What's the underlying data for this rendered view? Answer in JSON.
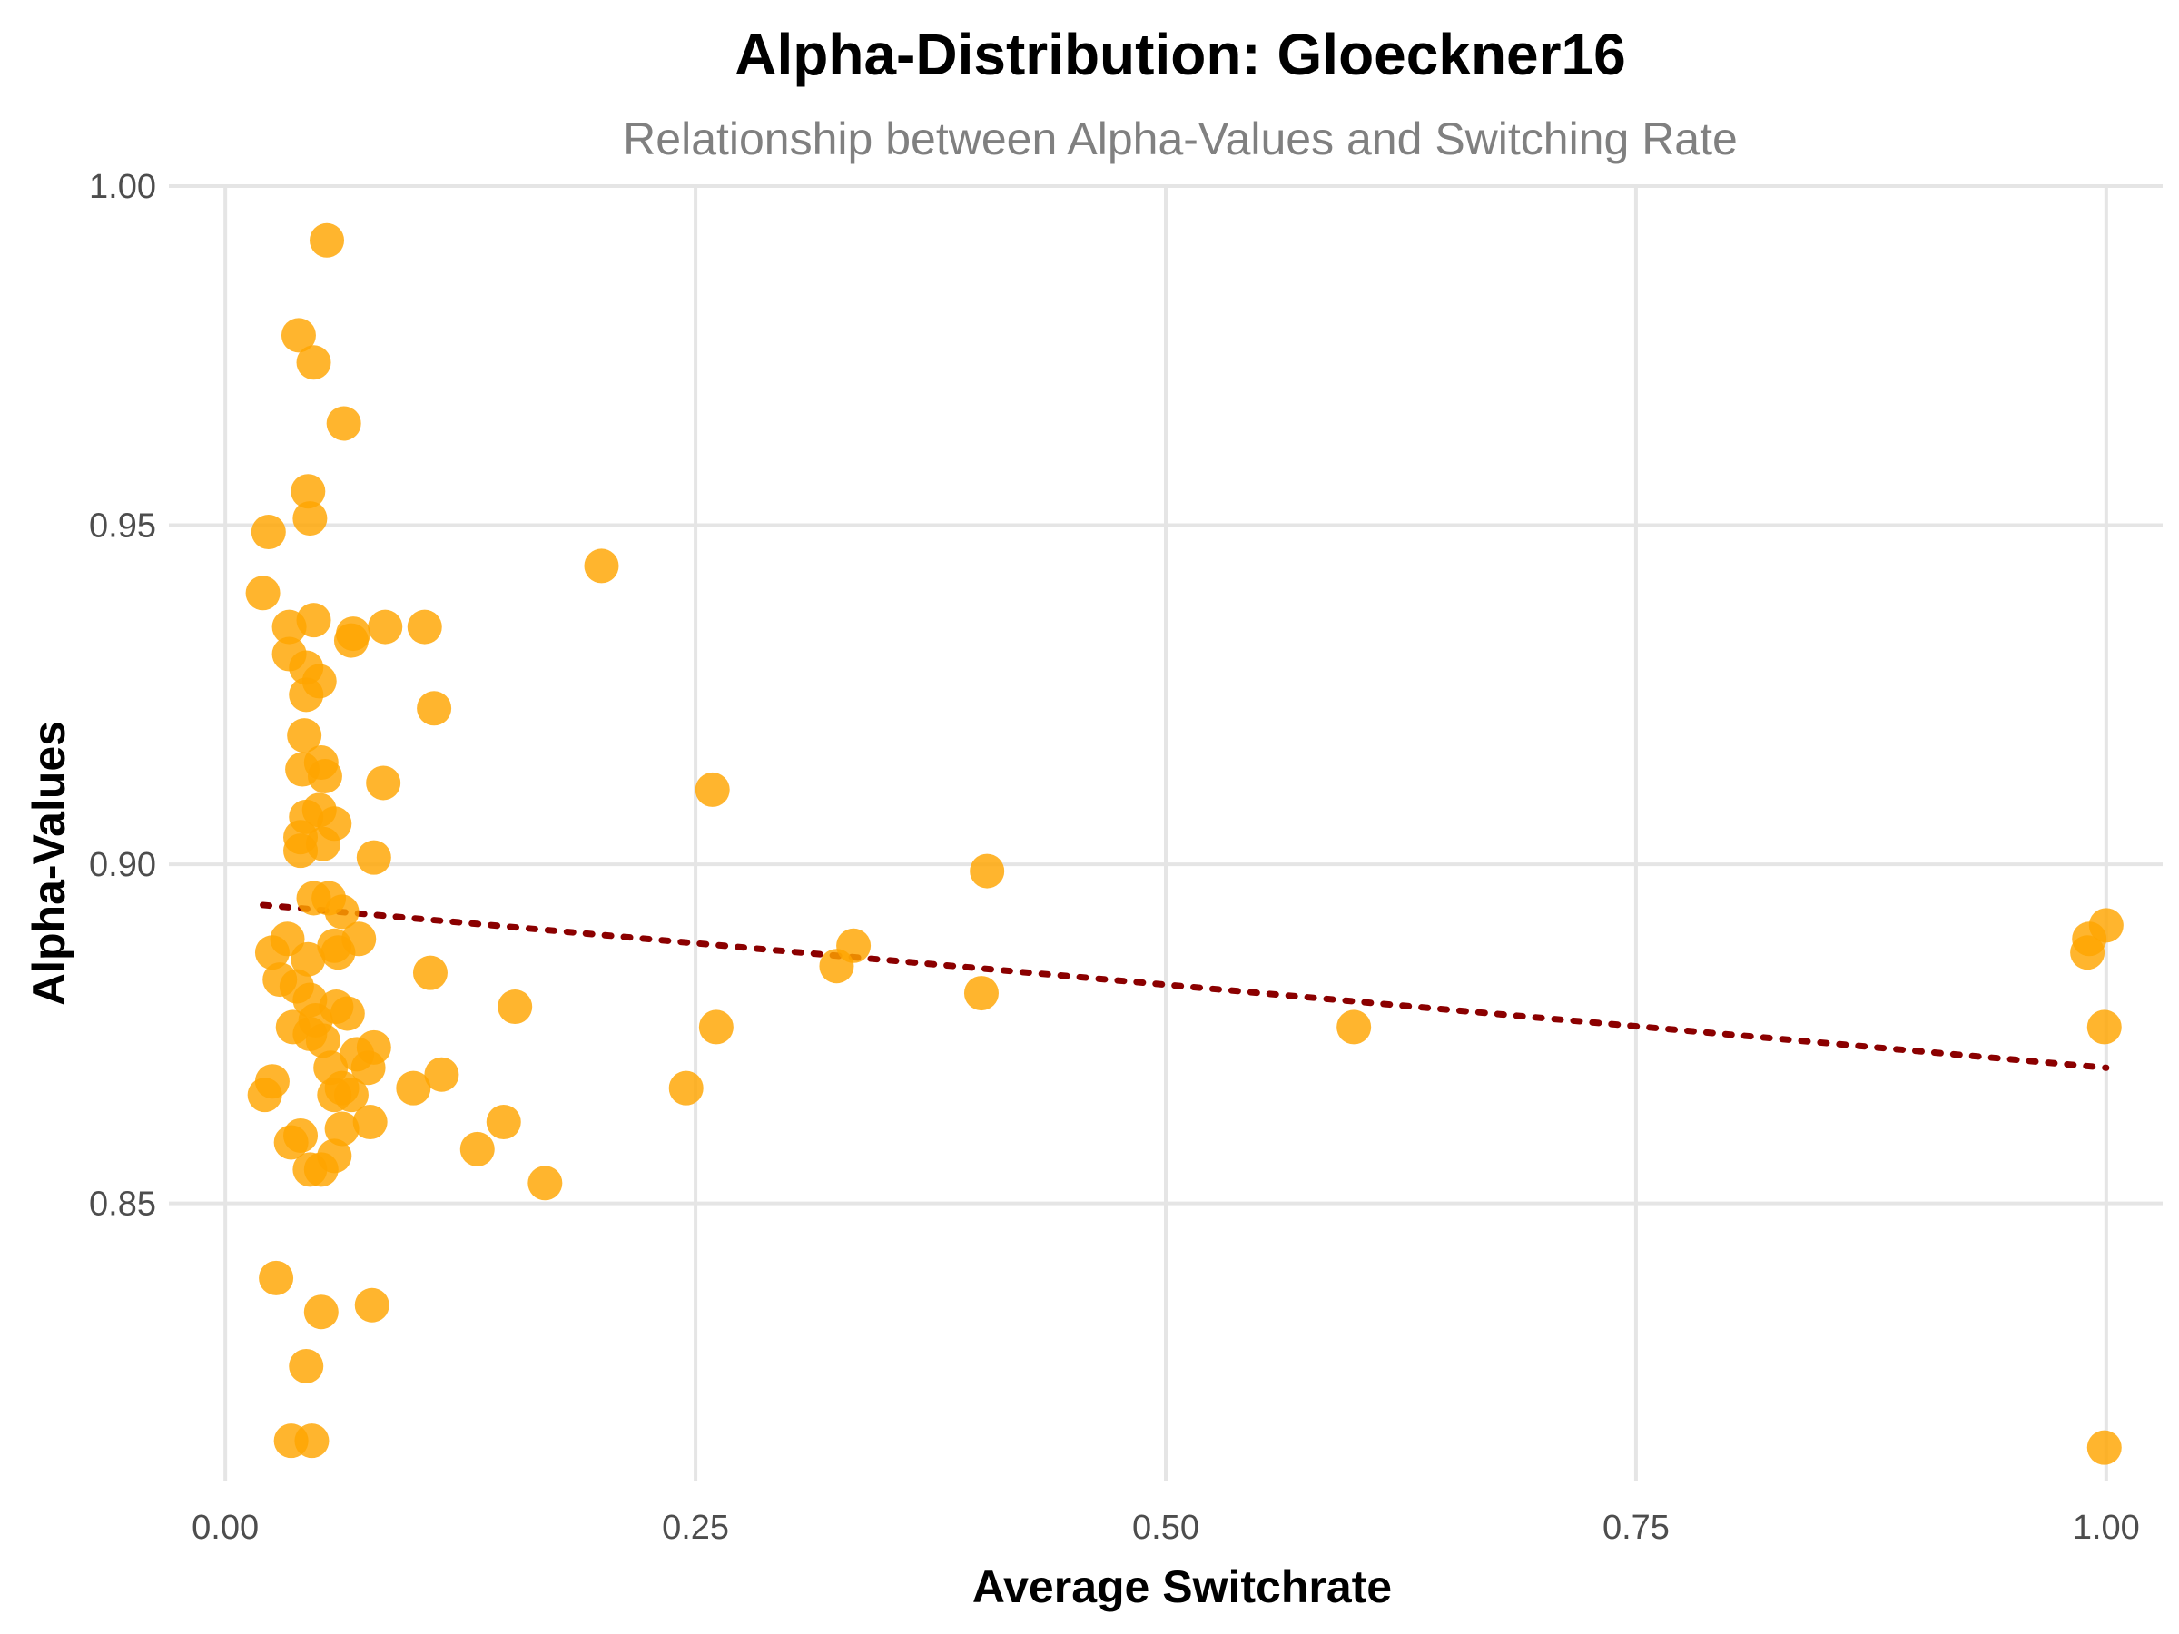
{
  "chart_data": {
    "type": "scatter",
    "title": "Alpha-Distribution: Gloeckner16",
    "subtitle": "Relationship between Alpha-Values and Switching Rate",
    "xlabel": "Average Switchrate",
    "ylabel": "Alpha-Values",
    "xlim": [
      -0.03,
      1.03
    ],
    "ylim": [
      0.809,
      1.0
    ],
    "x_ticks": [
      0.0,
      0.25,
      0.5,
      0.75,
      1.0
    ],
    "x_tick_labels": [
      "0.00",
      "0.25",
      "0.50",
      "0.75",
      "1.00"
    ],
    "y_ticks": [
      0.85,
      0.9,
      0.95,
      1.0
    ],
    "y_tick_labels": [
      "0.85",
      "0.90",
      "0.95",
      "1.00"
    ],
    "grid": true,
    "point_color": "#FFA500",
    "trend_color": "#8B0000",
    "trend_line": {
      "x": [
        0.02,
        1.0
      ],
      "y": [
        0.894,
        0.87
      ]
    },
    "points": {
      "x": [
        0.054,
        0.039,
        0.047,
        0.063,
        0.044,
        0.023,
        0.045,
        0.02,
        0.034,
        0.047,
        0.068,
        0.067,
        0.085,
        0.106,
        0.034,
        0.043,
        0.05,
        0.043,
        0.111,
        0.042,
        0.041,
        0.051,
        0.053,
        0.084,
        0.05,
        0.043,
        0.058,
        0.04,
        0.052,
        0.079,
        0.04,
        0.055,
        0.062,
        0.047,
        0.033,
        0.058,
        0.06,
        0.071,
        0.109,
        0.044,
        0.059,
        0.154,
        0.025,
        0.029,
        0.038,
        0.045,
        0.079,
        0.076,
        0.056,
        0.045,
        0.036,
        0.021,
        0.025,
        0.115,
        0.1,
        0.062,
        0.058,
        0.067,
        0.148,
        0.077,
        0.04,
        0.062,
        0.058,
        0.035,
        0.134,
        0.045,
        0.051,
        0.17,
        0.027,
        0.051,
        0.078,
        0.043,
        0.035,
        0.046,
        0.2,
        0.259,
        0.405,
        0.334,
        0.325,
        0.402,
        0.261,
        0.6,
        0.245,
        0.991,
        0.99,
        1.0,
        0.999,
        0.999,
        0.048,
        0.052,
        0.065,
        0.07
      ],
      "y": [
        0.992,
        0.978,
        0.974,
        0.965,
        0.955,
        0.949,
        0.951,
        0.94,
        0.935,
        0.936,
        0.934,
        0.933,
        0.935,
        0.935,
        0.931,
        0.929,
        0.927,
        0.925,
        0.923,
        0.919,
        0.914,
        0.915,
        0.913,
        0.912,
        0.908,
        0.907,
        0.906,
        0.904,
        0.903,
        0.901,
        0.902,
        0.895,
        0.893,
        0.895,
        0.889,
        0.888,
        0.887,
        0.889,
        0.884,
        0.886,
        0.879,
        0.879,
        0.887,
        0.883,
        0.882,
        0.88,
        0.873,
        0.87,
        0.87,
        0.875,
        0.876,
        0.866,
        0.868,
        0.869,
        0.867,
        0.867,
        0.866,
        0.866,
        0.862,
        0.862,
        0.86,
        0.861,
        0.857,
        0.859,
        0.858,
        0.855,
        0.855,
        0.853,
        0.839,
        0.834,
        0.835,
        0.826,
        0.815,
        0.815,
        0.944,
        0.911,
        0.899,
        0.888,
        0.885,
        0.881,
        0.876,
        0.876,
        0.867,
        0.889,
        0.887,
        0.891,
        0.876,
        0.814,
        0.877,
        0.874,
        0.878,
        0.872
      ]
    }
  }
}
